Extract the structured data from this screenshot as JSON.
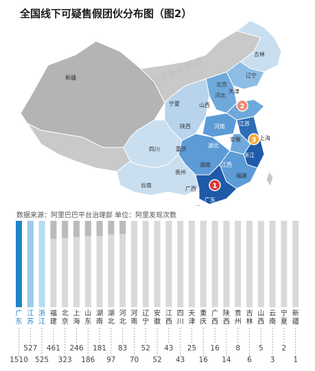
{
  "title": "全国线下可疑售假团伙分布图（图2）",
  "source": "数据来源：阿里巴巴平台治理部  单位：阿里发现次数",
  "watermark": "经济参考报道",
  "colors": {
    "top1": "#1f86c8",
    "top2": "#9dcbe9",
    "top3": "#b6dcf2",
    "midGray": "#bbbbbb",
    "lightGray": "#d9d9d9",
    "marker1": "#e0393e",
    "marker2": "#f08a73",
    "marker3": "#f4a83a"
  },
  "map": {
    "markers": [
      {
        "label": "1",
        "province": "广东"
      },
      {
        "label": "2",
        "province": "山东"
      },
      {
        "label": "3",
        "province": "上海"
      }
    ],
    "labels": [
      "新疆",
      "吉林",
      "辽宁",
      "北京",
      "天津",
      "河北",
      "宁夏",
      "山西",
      "山东",
      "陕西",
      "河南",
      "江苏",
      "安徽",
      "上海",
      "四川",
      "重庆",
      "湖北",
      "浙江",
      "湖南",
      "江西",
      "贵州",
      "福建",
      "云南",
      "广西",
      "广东"
    ]
  },
  "chart_data": {
    "type": "bar",
    "categories": [
      "广东",
      "江苏",
      "浙江",
      "福建",
      "北京",
      "上海",
      "山东",
      "湖南",
      "湖北",
      "河北",
      "河南",
      "辽宁",
      "安徽",
      "江西",
      "四川",
      "天津",
      "重庆",
      "广西",
      "陕西",
      "贵州",
      "吉林",
      "山西",
      "云南",
      "宁夏",
      "新疆"
    ],
    "values": [
      1510,
      527,
      525,
      461,
      323,
      246,
      186,
      181,
      97,
      83,
      70,
      52,
      52,
      43,
      43,
      25,
      16,
      16,
      14,
      8,
      6,
      5,
      3,
      2,
      1
    ],
    "ylim": [
      0,
      1510
    ]
  }
}
